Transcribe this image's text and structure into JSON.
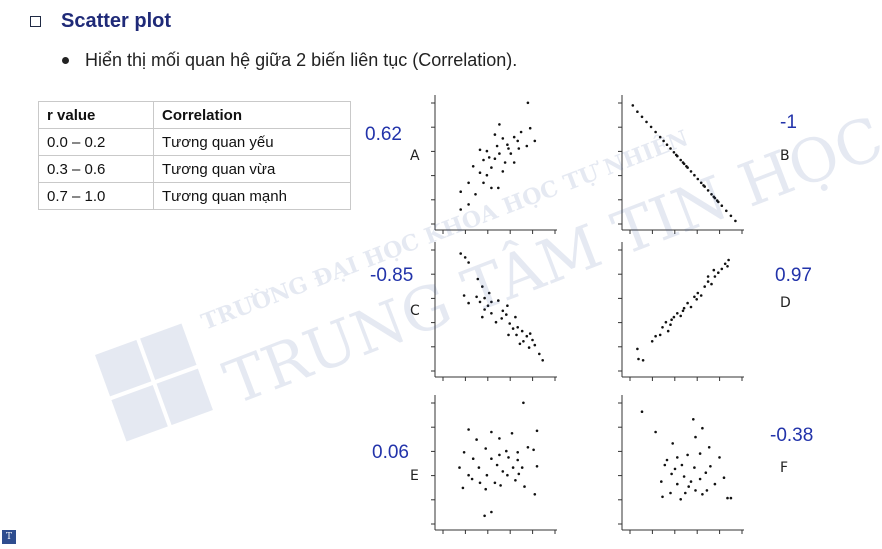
{
  "heading": "Scatter plot",
  "bullet": "Hiển thị mối quan hệ giữa 2 biến liên tục (Correlation).",
  "table": {
    "headers": [
      "r value",
      "Correlation"
    ],
    "rows": [
      [
        "0.0 – 0.2",
        "Tương quan yếu"
      ],
      [
        "0.3 – 0.6",
        "Tương quan vừa"
      ],
      [
        "0.7 – 1.0",
        "Tương quan mạnh"
      ]
    ]
  },
  "watermark": {
    "line1": "TRƯỜNG ĐẠI HỌC KHOA HỌC TỰ NHIÊN",
    "line2": "TRUNG TÂM TIN HỌC"
  },
  "colors": {
    "heading": "#1f2a78",
    "r_value": "#2233aa",
    "watermark": "#3b5998"
  },
  "chart_data": [
    {
      "type": "scatter",
      "label": "A",
      "r": "0.62",
      "xlim": [
        0,
        10
      ],
      "ylim": [
        0,
        10
      ],
      "points": [
        [
          1.9,
          1.3
        ],
        [
          2.6,
          1.7
        ],
        [
          1.9,
          2.7
        ],
        [
          2.6,
          3.4
        ],
        [
          3.2,
          2.5
        ],
        [
          3.6,
          4.2
        ],
        [
          3.0,
          4.7
        ],
        [
          3.9,
          5.2
        ],
        [
          4.2,
          4.0
        ],
        [
          4.6,
          4.6
        ],
        [
          4.9,
          5.3
        ],
        [
          5.3,
          5.7
        ],
        [
          5.6,
          4.3
        ],
        [
          4.6,
          3.0
        ],
        [
          3.9,
          3.4
        ],
        [
          5.2,
          3.0
        ],
        [
          6.0,
          6.4
        ],
        [
          6.3,
          5.7
        ],
        [
          6.6,
          7.0
        ],
        [
          7.0,
          6.1
        ],
        [
          7.2,
          7.4
        ],
        [
          6.6,
          5.0
        ],
        [
          5.6,
          6.9
        ],
        [
          4.9,
          7.2
        ],
        [
          7.7,
          6.3
        ],
        [
          8.4,
          6.7
        ],
        [
          8.0,
          7.7
        ],
        [
          5.8,
          5.0
        ],
        [
          5.3,
          8.0
        ],
        [
          7.8,
          9.7
        ],
        [
          4.2,
          5.9
        ],
        [
          3.6,
          6.0
        ],
        [
          4.4,
          5.4
        ],
        [
          6.1,
          6.1
        ],
        [
          6.9,
          6.7
        ],
        [
          5.1,
          6.3
        ]
      ]
    },
    {
      "type": "scatter",
      "label": "B",
      "r": "-1",
      "xlim": [
        0,
        10
      ],
      "ylim": [
        0,
        10
      ],
      "points": [
        [
          0.6,
          9.5
        ],
        [
          1.0,
          9.0
        ],
        [
          1.4,
          8.6
        ],
        [
          1.8,
          8.2
        ],
        [
          2.2,
          7.8
        ],
        [
          2.6,
          7.4
        ],
        [
          3.0,
          7.0
        ],
        [
          3.3,
          6.7
        ],
        [
          3.6,
          6.4
        ],
        [
          3.9,
          6.1
        ],
        [
          4.2,
          5.8
        ],
        [
          4.5,
          5.5
        ],
        [
          4.8,
          5.2
        ],
        [
          5.1,
          4.9
        ],
        [
          5.4,
          4.6
        ],
        [
          5.7,
          4.3
        ],
        [
          6.0,
          4.0
        ],
        [
          6.3,
          3.7
        ],
        [
          6.6,
          3.4
        ],
        [
          6.9,
          3.1
        ],
        [
          7.2,
          2.8
        ],
        [
          7.5,
          2.5
        ],
        [
          7.8,
          2.2
        ],
        [
          8.1,
          1.9
        ],
        [
          8.4,
          1.6
        ],
        [
          8.8,
          1.2
        ],
        [
          9.2,
          0.8
        ],
        [
          9.6,
          0.4
        ],
        [
          4.4,
          5.6
        ],
        [
          5.3,
          4.7
        ],
        [
          6.8,
          3.2
        ],
        [
          7.7,
          2.3
        ],
        [
          8.0,
          2.0
        ],
        [
          5.0,
          5.0
        ]
      ]
    },
    {
      "type": "scatter",
      "label": "C",
      "r": "-0.85",
      "xlim": [
        0,
        10
      ],
      "ylim": [
        0,
        10
      ],
      "points": [
        [
          1.9,
          9.4
        ],
        [
          2.3,
          9.1
        ],
        [
          2.6,
          8.7
        ],
        [
          2.2,
          6.1
        ],
        [
          2.6,
          5.5
        ],
        [
          3.4,
          7.4
        ],
        [
          3.8,
          6.8
        ],
        [
          3.3,
          6.0
        ],
        [
          4.0,
          5.9
        ],
        [
          4.4,
          6.3
        ],
        [
          4.6,
          5.6
        ],
        [
          4.0,
          5.0
        ],
        [
          4.6,
          4.7
        ],
        [
          5.2,
          5.7
        ],
        [
          5.6,
          4.9
        ],
        [
          6.0,
          5.3
        ],
        [
          5.5,
          4.3
        ],
        [
          6.2,
          3.9
        ],
        [
          6.7,
          4.4
        ],
        [
          6.9,
          3.6
        ],
        [
          7.3,
          3.3
        ],
        [
          6.1,
          3.0
        ],
        [
          7.7,
          2.9
        ],
        [
          8.0,
          3.1
        ],
        [
          7.4,
          2.5
        ],
        [
          8.4,
          2.2
        ],
        [
          8.8,
          1.5
        ],
        [
          9.1,
          1.0
        ],
        [
          7.9,
          2.0
        ],
        [
          6.8,
          3.0
        ],
        [
          5.0,
          4.0
        ],
        [
          4.3,
          5.3
        ],
        [
          3.8,
          4.4
        ],
        [
          5.9,
          4.6
        ],
        [
          6.5,
          3.5
        ],
        [
          3.6,
          5.6
        ],
        [
          7.1,
          2.3
        ],
        [
          8.2,
          2.6
        ]
      ]
    },
    {
      "type": "scatter",
      "label": "D",
      "r": "0.97",
      "xlim": [
        0,
        10
      ],
      "ylim": [
        0,
        10
      ],
      "points": [
        [
          1.1,
          1.1
        ],
        [
          1.5,
          1.0
        ],
        [
          1.0,
          1.9
        ],
        [
          2.3,
          2.5
        ],
        [
          2.6,
          2.9
        ],
        [
          3.0,
          3.0
        ],
        [
          3.2,
          3.6
        ],
        [
          3.5,
          4.0
        ],
        [
          3.9,
          3.8
        ],
        [
          4.2,
          4.4
        ],
        [
          4.5,
          4.7
        ],
        [
          4.8,
          4.5
        ],
        [
          5.1,
          5.1
        ],
        [
          5.4,
          5.5
        ],
        [
          5.7,
          5.2
        ],
        [
          6.0,
          6.0
        ],
        [
          6.3,
          6.3
        ],
        [
          6.6,
          6.1
        ],
        [
          6.9,
          6.8
        ],
        [
          7.2,
          7.2
        ],
        [
          7.5,
          7.0
        ],
        [
          7.8,
          7.6
        ],
        [
          8.1,
          7.9
        ],
        [
          8.4,
          8.2
        ],
        [
          8.7,
          8.6
        ],
        [
          9.0,
          8.9
        ],
        [
          7.2,
          7.6
        ],
        [
          6.2,
          5.8
        ],
        [
          5.0,
          4.9
        ],
        [
          4.0,
          4.2
        ],
        [
          3.7,
          3.3
        ],
        [
          8.9,
          8.4
        ],
        [
          7.7,
          8.1
        ]
      ]
    },
    {
      "type": "scatter",
      "label": "E",
      "r": "0.06",
      "xlim": [
        0,
        10
      ],
      "ylim": [
        0,
        10
      ],
      "points": [
        [
          7.4,
          9.7
        ],
        [
          2.6,
          7.6
        ],
        [
          4.6,
          7.4
        ],
        [
          6.4,
          7.3
        ],
        [
          8.6,
          7.5
        ],
        [
          3.3,
          6.8
        ],
        [
          5.3,
          6.9
        ],
        [
          7.8,
          6.2
        ],
        [
          2.2,
          5.8
        ],
        [
          4.1,
          6.1
        ],
        [
          5.9,
          5.9
        ],
        [
          6.9,
          5.8
        ],
        [
          8.3,
          6.0
        ],
        [
          3.0,
          5.3
        ],
        [
          4.6,
          5.3
        ],
        [
          6.1,
          5.4
        ],
        [
          1.8,
          4.6
        ],
        [
          3.5,
          4.6
        ],
        [
          5.1,
          4.8
        ],
        [
          6.5,
          4.6
        ],
        [
          7.3,
          4.6
        ],
        [
          8.6,
          4.7
        ],
        [
          2.6,
          4.0
        ],
        [
          4.2,
          4.0
        ],
        [
          5.6,
          4.3
        ],
        [
          6.0,
          4.0
        ],
        [
          3.6,
          3.4
        ],
        [
          4.9,
          3.4
        ],
        [
          6.7,
          3.6
        ],
        [
          2.1,
          3.0
        ],
        [
          4.1,
          2.9
        ],
        [
          5.4,
          3.2
        ],
        [
          7.5,
          3.1
        ],
        [
          8.4,
          2.5
        ],
        [
          4.6,
          1.1
        ],
        [
          4.0,
          0.8
        ],
        [
          5.3,
          5.6
        ],
        [
          6.9,
          5.2
        ],
        [
          2.9,
          3.7
        ],
        [
          7.0,
          4.1
        ]
      ]
    },
    {
      "type": "scatter",
      "label": "F",
      "r": "-0.38",
      "xlim": [
        0,
        10
      ],
      "ylim": [
        0,
        10
      ],
      "points": [
        [
          1.4,
          9.0
        ],
        [
          2.6,
          7.4
        ],
        [
          5.9,
          8.4
        ],
        [
          6.7,
          7.7
        ],
        [
          4.1,
          6.5
        ],
        [
          6.1,
          7.0
        ],
        [
          7.3,
          6.2
        ],
        [
          3.6,
          5.2
        ],
        [
          4.5,
          5.4
        ],
        [
          5.4,
          5.6
        ],
        [
          6.5,
          5.7
        ],
        [
          8.2,
          5.4
        ],
        [
          3.4,
          4.8
        ],
        [
          4.9,
          4.8
        ],
        [
          6.0,
          4.6
        ],
        [
          7.4,
          4.7
        ],
        [
          4.0,
          4.1
        ],
        [
          5.1,
          3.9
        ],
        [
          6.5,
          3.7
        ],
        [
          7.0,
          4.2
        ],
        [
          8.6,
          3.8
        ],
        [
          3.1,
          3.5
        ],
        [
          4.5,
          3.3
        ],
        [
          5.5,
          3.1
        ],
        [
          6.1,
          2.8
        ],
        [
          3.9,
          2.6
        ],
        [
          5.2,
          2.6
        ],
        [
          6.7,
          2.5
        ],
        [
          7.8,
          3.3
        ],
        [
          3.2,
          2.3
        ],
        [
          5.7,
          3.5
        ],
        [
          7.1,
          2.8
        ],
        [
          8.9,
          2.2
        ],
        [
          9.2,
          2.2
        ],
        [
          4.8,
          2.1
        ],
        [
          4.3,
          4.5
        ]
      ]
    }
  ]
}
